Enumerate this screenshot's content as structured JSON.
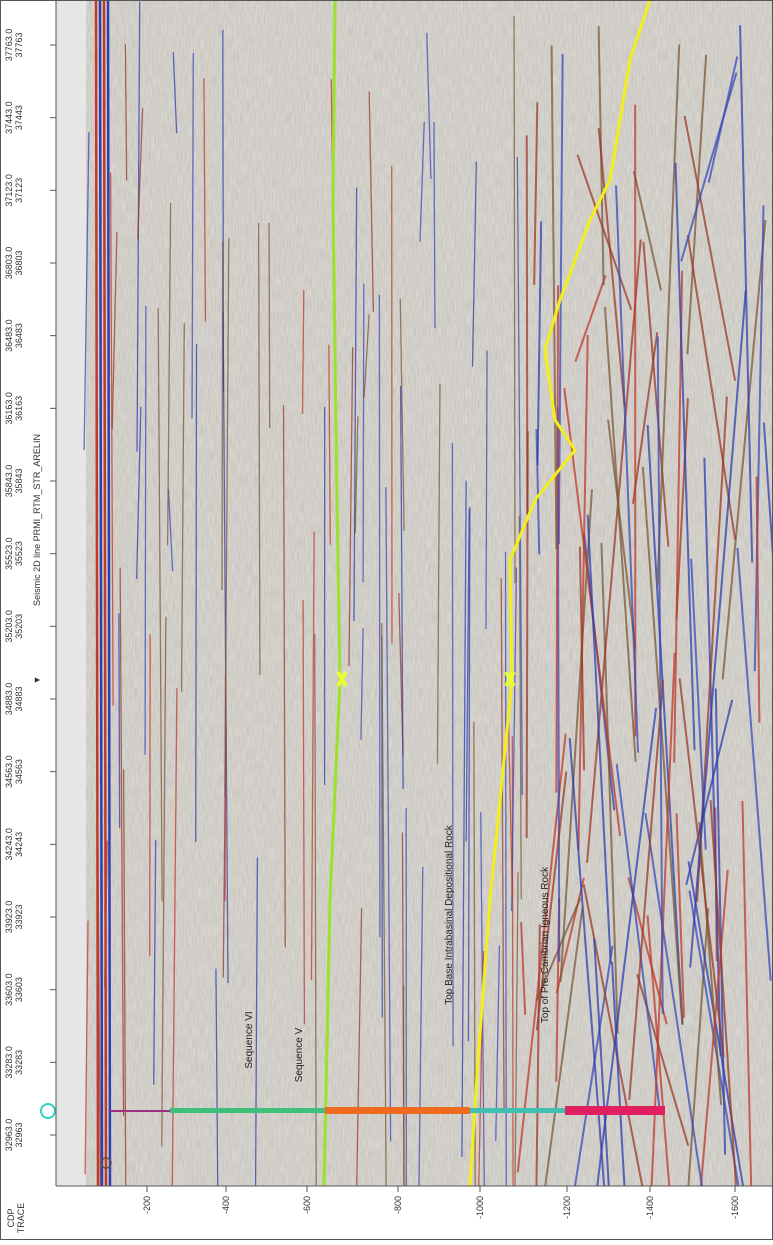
{
  "title": "Seismic 2D line PRMI_RTM_STR_ARELIN",
  "trace_axis": {
    "label_top": "CDP",
    "label_bottom": "TRACE",
    "ticks": [
      [
        "32963.0",
        "32963"
      ],
      [
        "33283.0",
        "33283"
      ],
      [
        "33603.0",
        "33603"
      ],
      [
        "33923.0",
        "33923"
      ],
      [
        "34243.0",
        "34243"
      ],
      [
        "34563.0",
        "34563"
      ],
      [
        "34883.0",
        "34883"
      ],
      [
        "35203.0",
        "35203"
      ],
      [
        "35523.0",
        "35523"
      ],
      [
        "35843.0",
        "35843"
      ],
      [
        "36163.0",
        "36163"
      ],
      [
        "36483.0",
        "36483"
      ],
      [
        "36803.0",
        "36803"
      ],
      [
        "37123.0",
        "37123"
      ],
      [
        "37443.0",
        "37443"
      ],
      [
        "37763.0",
        "37763"
      ]
    ]
  },
  "depth_axis": {
    "ticks": [
      "-200",
      "-400",
      "-600",
      "-800",
      "-1000",
      "-1200",
      "-1400",
      "-1600"
    ]
  },
  "horizons": [
    "Sequence VI",
    "Sequence V",
    "Top Base Intrabasinal Depositional Rock",
    "Top of Pre-Cambrian Igneous Rock"
  ]
}
